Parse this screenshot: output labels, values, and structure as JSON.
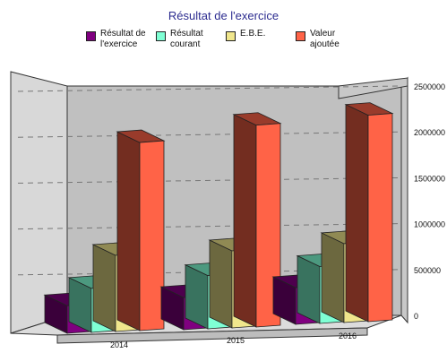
{
  "chart_data": {
    "type": "bar",
    "title": "Résultat de l'exercice",
    "categories": [
      "2014",
      "2015",
      "2016"
    ],
    "series": [
      {
        "name": "Résultat de l'exercice",
        "color": "#800080",
        "values": [
          300000,
          350000,
          400000
        ]
      },
      {
        "name": "Résultat courant",
        "color": "#7fffd4",
        "values": [
          480000,
          580000,
          620000
        ]
      },
      {
        "name": "E.B.E.",
        "color": "#f0e68c",
        "values": [
          830000,
          840000,
          860000
        ]
      },
      {
        "name": "Valeur ajoutée",
        "color": "#ff6347",
        "values": [
          2050000,
          2200000,
          2250000
        ]
      }
    ],
    "y_ticks": [
      "0",
      "500000",
      "1000000",
      "1500000",
      "2000000",
      "2500000"
    ],
    "ylim": [
      0,
      2500000
    ],
    "grid": true,
    "legend_position": "top"
  }
}
